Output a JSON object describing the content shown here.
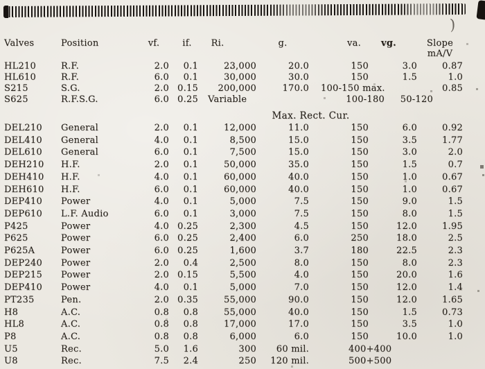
{
  "colors": {
    "paper": "#ebe8e1",
    "ink": "#241f19",
    "band": "#171310"
  },
  "decorations": {
    "squiggle_glyph": ")"
  },
  "table": {
    "section_note": "Max. Rect. Cur.",
    "columns": [
      {
        "key": "valve",
        "label": "Valves"
      },
      {
        "key": "position",
        "label": "Position"
      },
      {
        "key": "vf",
        "label": "vf."
      },
      {
        "key": "if",
        "label": "if."
      },
      {
        "key": "ri",
        "label": "Ri."
      },
      {
        "key": "g",
        "label": "g."
      },
      {
        "key": "va",
        "label": "va."
      },
      {
        "key": "vg",
        "label": "vg."
      },
      {
        "key": "slope",
        "label": "Slope",
        "label2": "mA/V"
      }
    ],
    "rows": [
      {
        "cells": [
          "HL210",
          "R.F.",
          "2.0",
          "0.1",
          "23,000",
          "20.0",
          "150",
          "3.0",
          "0.87"
        ]
      },
      {
        "cells": [
          "HL610",
          "R.F.",
          "6.0",
          "0.1",
          "30,000",
          "30.0",
          "150",
          "1.5",
          "1.0"
        ]
      },
      {
        "cells": [
          "S215",
          "S.G.",
          "2.0",
          "0.15",
          "200,000",
          "170.0",
          {
            "text": "100-150 max.",
            "span": 2,
            "class": "span-left"
          },
          "0.85"
        ]
      },
      {
        "cells": [
          "S625",
          "R.F.S.G.",
          "6.0",
          "0.25",
          {
            "text": "Variable",
            "class": "flush-left"
          },
          "",
          {
            "text": "100-180",
            "class": "nudge"
          },
          {
            "text": "50-120",
            "class": "nudge"
          },
          ""
        ]
      },
      {
        "cells": [
          "DEL210",
          "General",
          "2.0",
          "0.1",
          "12,000",
          "11.0",
          "150",
          "6.0",
          "0.92"
        ]
      },
      {
        "cells": [
          "DEL410",
          "General",
          "4.0",
          "0.1",
          "8,500",
          "15.0",
          "150",
          "3.5",
          "1.77"
        ]
      },
      {
        "cells": [
          "DEL610",
          "General",
          "6.0",
          "0.1",
          "7,500",
          "15.0",
          "150",
          "3.0",
          "2.0"
        ]
      },
      {
        "cells": [
          "DEH210",
          "H.F.",
          "2.0",
          "0.1",
          "50,000",
          "35.0",
          "150",
          "1.5",
          "0.7"
        ]
      },
      {
        "cells": [
          "DEH410",
          "H.F.",
          "4.0",
          "0.1",
          "60,000",
          "40.0",
          "150",
          "1.0",
          "0.67"
        ]
      },
      {
        "cells": [
          "DEH610",
          "H.F.",
          "6.0",
          "0.1",
          "60,000",
          "40.0",
          "150",
          "1.0",
          "0.67"
        ]
      },
      {
        "cells": [
          "DEP410",
          "Power",
          "4.0",
          "0.1",
          "5,000",
          "7.5",
          "150",
          "9.0",
          "1.5"
        ]
      },
      {
        "cells": [
          "DEP610",
          "L.F. Audio",
          "6.0",
          "0.1",
          "3,000",
          "7.5",
          "150",
          "8.0",
          "1.5"
        ]
      },
      {
        "cells": [
          "P425",
          "Power",
          "4.0",
          "0.25",
          "2,300",
          "4.5",
          "150",
          "12.0",
          "1.95"
        ]
      },
      {
        "cells": [
          "P625",
          "Power",
          "6.0",
          "0.25",
          "2,400",
          "6.0",
          "250",
          "18.0",
          "2.5"
        ]
      },
      {
        "cells": [
          "P625A",
          "Power",
          "6.0",
          "0.25",
          "1,600",
          "3.7",
          "180",
          "22.5",
          "2.3"
        ]
      },
      {
        "cells": [
          "DEP240",
          "Power",
          "2.0",
          "0.4",
          "2,500",
          "8.0",
          "150",
          "8.0",
          "2.3"
        ]
      },
      {
        "cells": [
          "DEP215",
          "Power",
          "2.0",
          "0.15",
          "5,500",
          "4.0",
          "150",
          "20.0",
          "1.6"
        ]
      },
      {
        "cells": [
          "DEP410",
          "Power",
          "4.0",
          "0.1",
          "5,000",
          "7.0",
          "150",
          "12.0",
          "1.4"
        ]
      },
      {
        "cells": [
          "PT235",
          "Pen.",
          "2.0",
          "0.35",
          "55,000",
          "90.0",
          "150",
          "12.0",
          "1.65"
        ]
      },
      {
        "cells": [
          "H8",
          "A.C.",
          "0.8",
          "0.8",
          "55,000",
          "40.0",
          "150",
          "1.5",
          "0.73"
        ]
      },
      {
        "cells": [
          "HL8",
          "A.C.",
          "0.8",
          "0.8",
          "17,000",
          "17.0",
          "150",
          "3.5",
          "1.0"
        ]
      },
      {
        "cells": [
          "P8",
          "A.C.",
          "0.8",
          "0.8",
          "6,000",
          "6.0",
          "150",
          "10.0",
          "1.0"
        ]
      },
      {
        "cells": [
          "U5",
          "Rec.",
          "5.0",
          "1.6",
          "300",
          "60 mil.",
          {
            "text": "400+400",
            "span": 2,
            "class": "span-pad"
          },
          ""
        ]
      },
      {
        "cells": [
          "U8",
          "Rec.",
          "7.5",
          "2.4",
          "250",
          "120 mil.",
          {
            "text": "500+500",
            "span": 2,
            "class": "span-pad"
          },
          ""
        ]
      }
    ]
  }
}
